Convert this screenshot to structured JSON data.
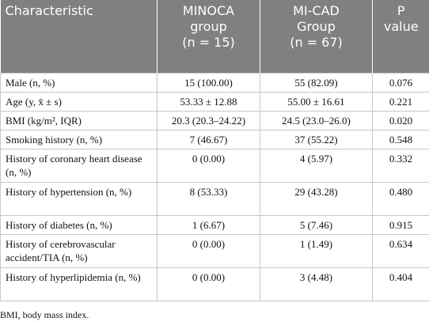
{
  "table": {
    "header": [
      [
        "Characteristic"
      ],
      [
        "MINOCA",
        "group",
        "(n = 15)"
      ],
      [
        "MI-CAD",
        "Group",
        "(n = 67)"
      ],
      [
        "P",
        "value"
      ]
    ],
    "rows": [
      [
        "Male (n, %)",
        "15 (100.00)",
        "55 (82.09)",
        "0.076"
      ],
      [
        "Age (y, x̄ ± s)",
        "53.33 ± 12.88",
        "55.00 ± 16.61",
        "0.221"
      ],
      [
        "BMI (kg/m², IQR)",
        "20.3 (20.3–24.22)",
        "24.5 (23.0–26.0)",
        "0.020"
      ],
      [
        "Smoking history (n, %)",
        "7 (46.67)",
        "37 (55.22)",
        "0.548"
      ],
      [
        "History of coronary heart disease (n, %)",
        "0 (0.00)",
        "4 (5.97)",
        "0.332"
      ],
      [
        "History of hypertension (n, %)",
        "8 (53.33)",
        "29 (43.28)",
        "0.480"
      ],
      [
        "History of diabetes (n, %)",
        "1 (6.67)",
        "5 (7.46)",
        "0.915"
      ],
      [
        "History of cerebrovascular accident/TIA (n, %)",
        "0 (0.00)",
        "1 (1.49)",
        "0.634"
      ],
      [
        "History of hyperlipidemia (n, %)",
        "0 (0.00)",
        "3 (4.48)",
        "0.404"
      ]
    ]
  },
  "footnote": "BMI, body mass index."
}
